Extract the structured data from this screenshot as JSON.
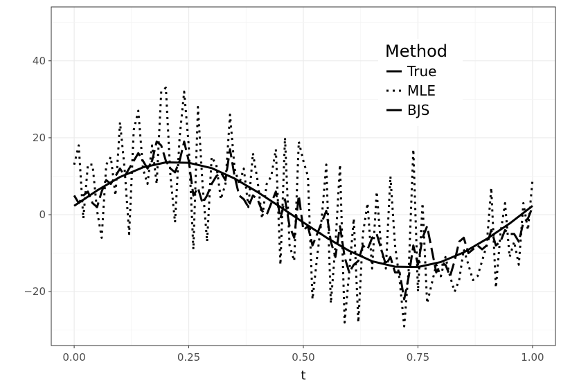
{
  "chart_data": {
    "type": "line",
    "xlabel": "t",
    "ylabel": "",
    "xlim": [
      -0.05,
      1.05
    ],
    "ylim": [
      -34,
      54
    ],
    "x_ticks": [
      0.0,
      0.25,
      0.5,
      0.75,
      1.0
    ],
    "x_tick_labels": [
      "0.00",
      "0.25",
      "0.50",
      "0.75",
      "1.00"
    ],
    "y_ticks": [
      -20,
      0,
      20,
      40
    ],
    "y_tick_labels": [
      "−20",
      "0",
      "20",
      "40"
    ],
    "grid": true,
    "legend": {
      "title": "Method",
      "position": "top-right"
    },
    "series": [
      {
        "name": "True",
        "style": "solid",
        "x": [
          0.0,
          0.05,
          0.1,
          0.15,
          0.2,
          0.25,
          0.3,
          0.35,
          0.4,
          0.45,
          0.5,
          0.55,
          0.6,
          0.65,
          0.7,
          0.75,
          0.8,
          0.85,
          0.9,
          0.95,
          1.0
        ],
        "values": [
          2.3,
          6.3,
          9.8,
          12.3,
          13.6,
          13.5,
          12.1,
          9.4,
          5.9,
          2.0,
          -2.0,
          -5.9,
          -9.4,
          -12.1,
          -13.5,
          -13.6,
          -12.3,
          -9.8,
          -6.3,
          -2.3,
          2.3
        ]
      },
      {
        "name": "MLE",
        "style": "dotted",
        "x": [
          0.0,
          0.01,
          0.02,
          0.03,
          0.04,
          0.05,
          0.06,
          0.07,
          0.08,
          0.09,
          0.1,
          0.11,
          0.12,
          0.13,
          0.14,
          0.15,
          0.16,
          0.17,
          0.18,
          0.19,
          0.2,
          0.21,
          0.22,
          0.23,
          0.24,
          0.25,
          0.26,
          0.27,
          0.28,
          0.29,
          0.3,
          0.31,
          0.32,
          0.33,
          0.34,
          0.35,
          0.36,
          0.37,
          0.38,
          0.39,
          0.4,
          0.41,
          0.42,
          0.43,
          0.44,
          0.45,
          0.46,
          0.47,
          0.48,
          0.49,
          0.5,
          0.51,
          0.52,
          0.53,
          0.54,
          0.55,
          0.56,
          0.57,
          0.58,
          0.59,
          0.6,
          0.61,
          0.62,
          0.63,
          0.64,
          0.65,
          0.66,
          0.67,
          0.68,
          0.69,
          0.7,
          0.71,
          0.72,
          0.73,
          0.74,
          0.75,
          0.76,
          0.77,
          0.78,
          0.79,
          0.8,
          0.81,
          0.82,
          0.83,
          0.84,
          0.85,
          0.86,
          0.87,
          0.88,
          0.89,
          0.9,
          0.91,
          0.92,
          0.93,
          0.94,
          0.95,
          0.96,
          0.97,
          0.98,
          0.99,
          1.0
        ],
        "values": [
          13,
          18,
          -1,
          13,
          13,
          1,
          -6,
          13,
          15,
          5,
          24,
          12,
          -5,
          22,
          27,
          12,
          8,
          18,
          8,
          32,
          33,
          10,
          -2,
          20,
          32,
          18,
          -9,
          28,
          8,
          -7,
          15,
          13,
          4,
          8,
          26,
          12,
          8,
          12,
          2,
          16,
          9,
          -1,
          8,
          10,
          17,
          -13,
          20,
          -8,
          -12,
          19,
          14,
          10,
          -22,
          -11,
          -1,
          13,
          -23,
          -8,
          13,
          -28,
          -15,
          -1,
          -28,
          -5,
          3,
          -14,
          6,
          -9,
          -14,
          10,
          -8,
          -17,
          -29,
          -14,
          17,
          -20,
          3,
          -23,
          -18,
          -13,
          -16,
          -11,
          -16,
          -20,
          -17,
          -9,
          -13,
          -17,
          -16,
          -12,
          -8,
          7,
          -19,
          -5,
          3,
          -11,
          -7,
          -13,
          3,
          -4,
          9
        ]
      },
      {
        "name": "BJS",
        "style": "dashed",
        "x": [
          0.0,
          0.01,
          0.02,
          0.03,
          0.04,
          0.05,
          0.06,
          0.07,
          0.08,
          0.09,
          0.1,
          0.11,
          0.12,
          0.13,
          0.14,
          0.15,
          0.16,
          0.17,
          0.18,
          0.19,
          0.2,
          0.21,
          0.22,
          0.23,
          0.24,
          0.25,
          0.26,
          0.27,
          0.28,
          0.29,
          0.3,
          0.31,
          0.32,
          0.33,
          0.34,
          0.35,
          0.36,
          0.37,
          0.38,
          0.39,
          0.4,
          0.41,
          0.42,
          0.43,
          0.44,
          0.45,
          0.46,
          0.47,
          0.48,
          0.49,
          0.5,
          0.51,
          0.52,
          0.53,
          0.54,
          0.55,
          0.56,
          0.57,
          0.58,
          0.59,
          0.6,
          0.61,
          0.62,
          0.63,
          0.64,
          0.65,
          0.66,
          0.67,
          0.68,
          0.69,
          0.7,
          0.71,
          0.72,
          0.73,
          0.74,
          0.75,
          0.76,
          0.77,
          0.78,
          0.79,
          0.8,
          0.81,
          0.82,
          0.83,
          0.84,
          0.85,
          0.86,
          0.87,
          0.88,
          0.89,
          0.9,
          0.91,
          0.92,
          0.93,
          0.94,
          0.95,
          0.96,
          0.97,
          0.98,
          0.99,
          1.0
        ],
        "values": [
          5,
          3,
          5,
          6,
          3,
          2,
          6,
          9,
          8,
          10,
          12,
          10,
          12,
          14,
          16,
          14,
          12,
          14,
          19,
          18,
          14,
          12,
          11,
          14,
          19,
          14,
          5,
          7,
          3,
          5,
          8,
          10,
          11,
          9,
          17,
          10,
          5,
          4,
          2,
          5,
          4,
          1,
          0,
          3,
          6,
          -1,
          4,
          -3,
          -6,
          5,
          -4,
          -3,
          -8,
          -5,
          -2,
          1,
          -7,
          -11,
          -3,
          -11,
          -15,
          -13,
          -12,
          -8,
          -9,
          -6,
          -5,
          -9,
          -13,
          -11,
          -15,
          -15,
          -22,
          -16,
          -8,
          -13,
          -6,
          -3,
          -9,
          -15,
          -13,
          -13,
          -16,
          -12,
          -7,
          -6,
          -10,
          -9,
          -8,
          -9,
          -8,
          -4,
          -8,
          -7,
          -4,
          -5,
          -5,
          -7,
          -2,
          -1,
          2
        ]
      }
    ]
  }
}
